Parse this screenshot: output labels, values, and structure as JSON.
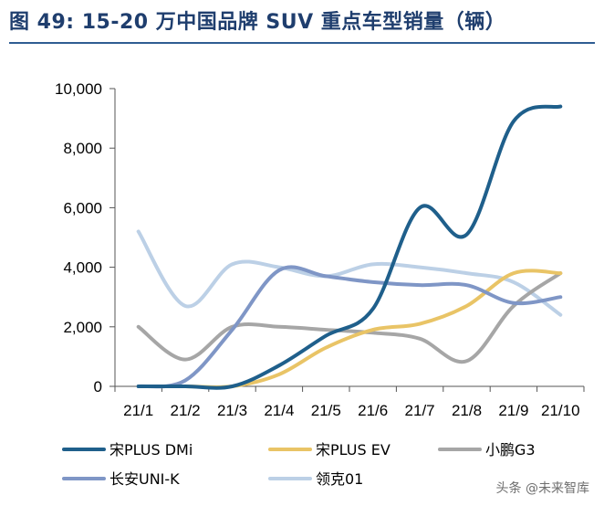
{
  "title": "图 49:  15-20 万中国品牌 SUV 重点车型销量（辆）",
  "watermark": "头条 @未来智库",
  "chart_data": {
    "type": "line",
    "title": "15-20 万中国品牌 SUV 重点车型销量（辆）",
    "xlabel": "",
    "ylabel": "",
    "categories": [
      "21/1",
      "21/2",
      "21/3",
      "21/4",
      "21/5",
      "21/6",
      "21/7",
      "21/8",
      "21/9",
      "21/10"
    ],
    "ylim": [
      0,
      10000
    ],
    "yticks": [
      0,
      2000,
      4000,
      6000,
      8000,
      10000
    ],
    "ytick_labels": [
      "0",
      "2,000",
      "4,000",
      "6,000",
      "8,000",
      "10,000"
    ],
    "legend_position": "bottom",
    "series": [
      {
        "name": "宋PLUS DMi",
        "color": "#1f5f8b",
        "values": [
          0,
          0,
          0,
          700,
          1700,
          2600,
          6000,
          5100,
          8900,
          9400
        ]
      },
      {
        "name": "宋PLUS EV",
        "color": "#e9c466",
        "values": [
          0,
          0,
          0,
          400,
          1300,
          1900,
          2100,
          2700,
          3800,
          3800
        ]
      },
      {
        "name": "小鹏G3",
        "color": "#a6a6a6",
        "values": [
          2000,
          900,
          2000,
          2000,
          1900,
          1800,
          1600,
          850,
          2700,
          3800
        ]
      },
      {
        "name": "长安UNI-K",
        "color": "#7f96c6",
        "values": [
          0,
          200,
          1900,
          3900,
          3700,
          3500,
          3400,
          3400,
          2800,
          3000
        ]
      },
      {
        "name": "领克01",
        "color": "#bcd0e6",
        "values": [
          5200,
          2700,
          4100,
          4000,
          3700,
          4100,
          4000,
          3800,
          3500,
          2400
        ]
      }
    ]
  }
}
